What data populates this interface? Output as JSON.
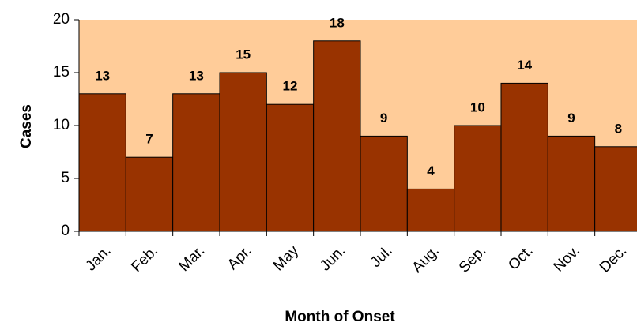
{
  "chart_data": {
    "type": "bar",
    "categories": [
      "Jan.",
      "Feb.",
      "Mar.",
      "Apr.",
      "May",
      "Jun.",
      "Jul.",
      "Aug.",
      "Sep.",
      "Oct.",
      "Nov.",
      "Dec."
    ],
    "values": [
      13,
      7,
      13,
      15,
      12,
      18,
      9,
      4,
      10,
      14,
      9,
      8
    ],
    "color": "#993300",
    "plot_background": "#ffcc99",
    "ylim": [
      0,
      20
    ],
    "yticks": [
      0,
      5,
      10,
      15,
      20
    ],
    "grid": false,
    "x_label": "Month of Onset",
    "y_label": "Cases"
  }
}
